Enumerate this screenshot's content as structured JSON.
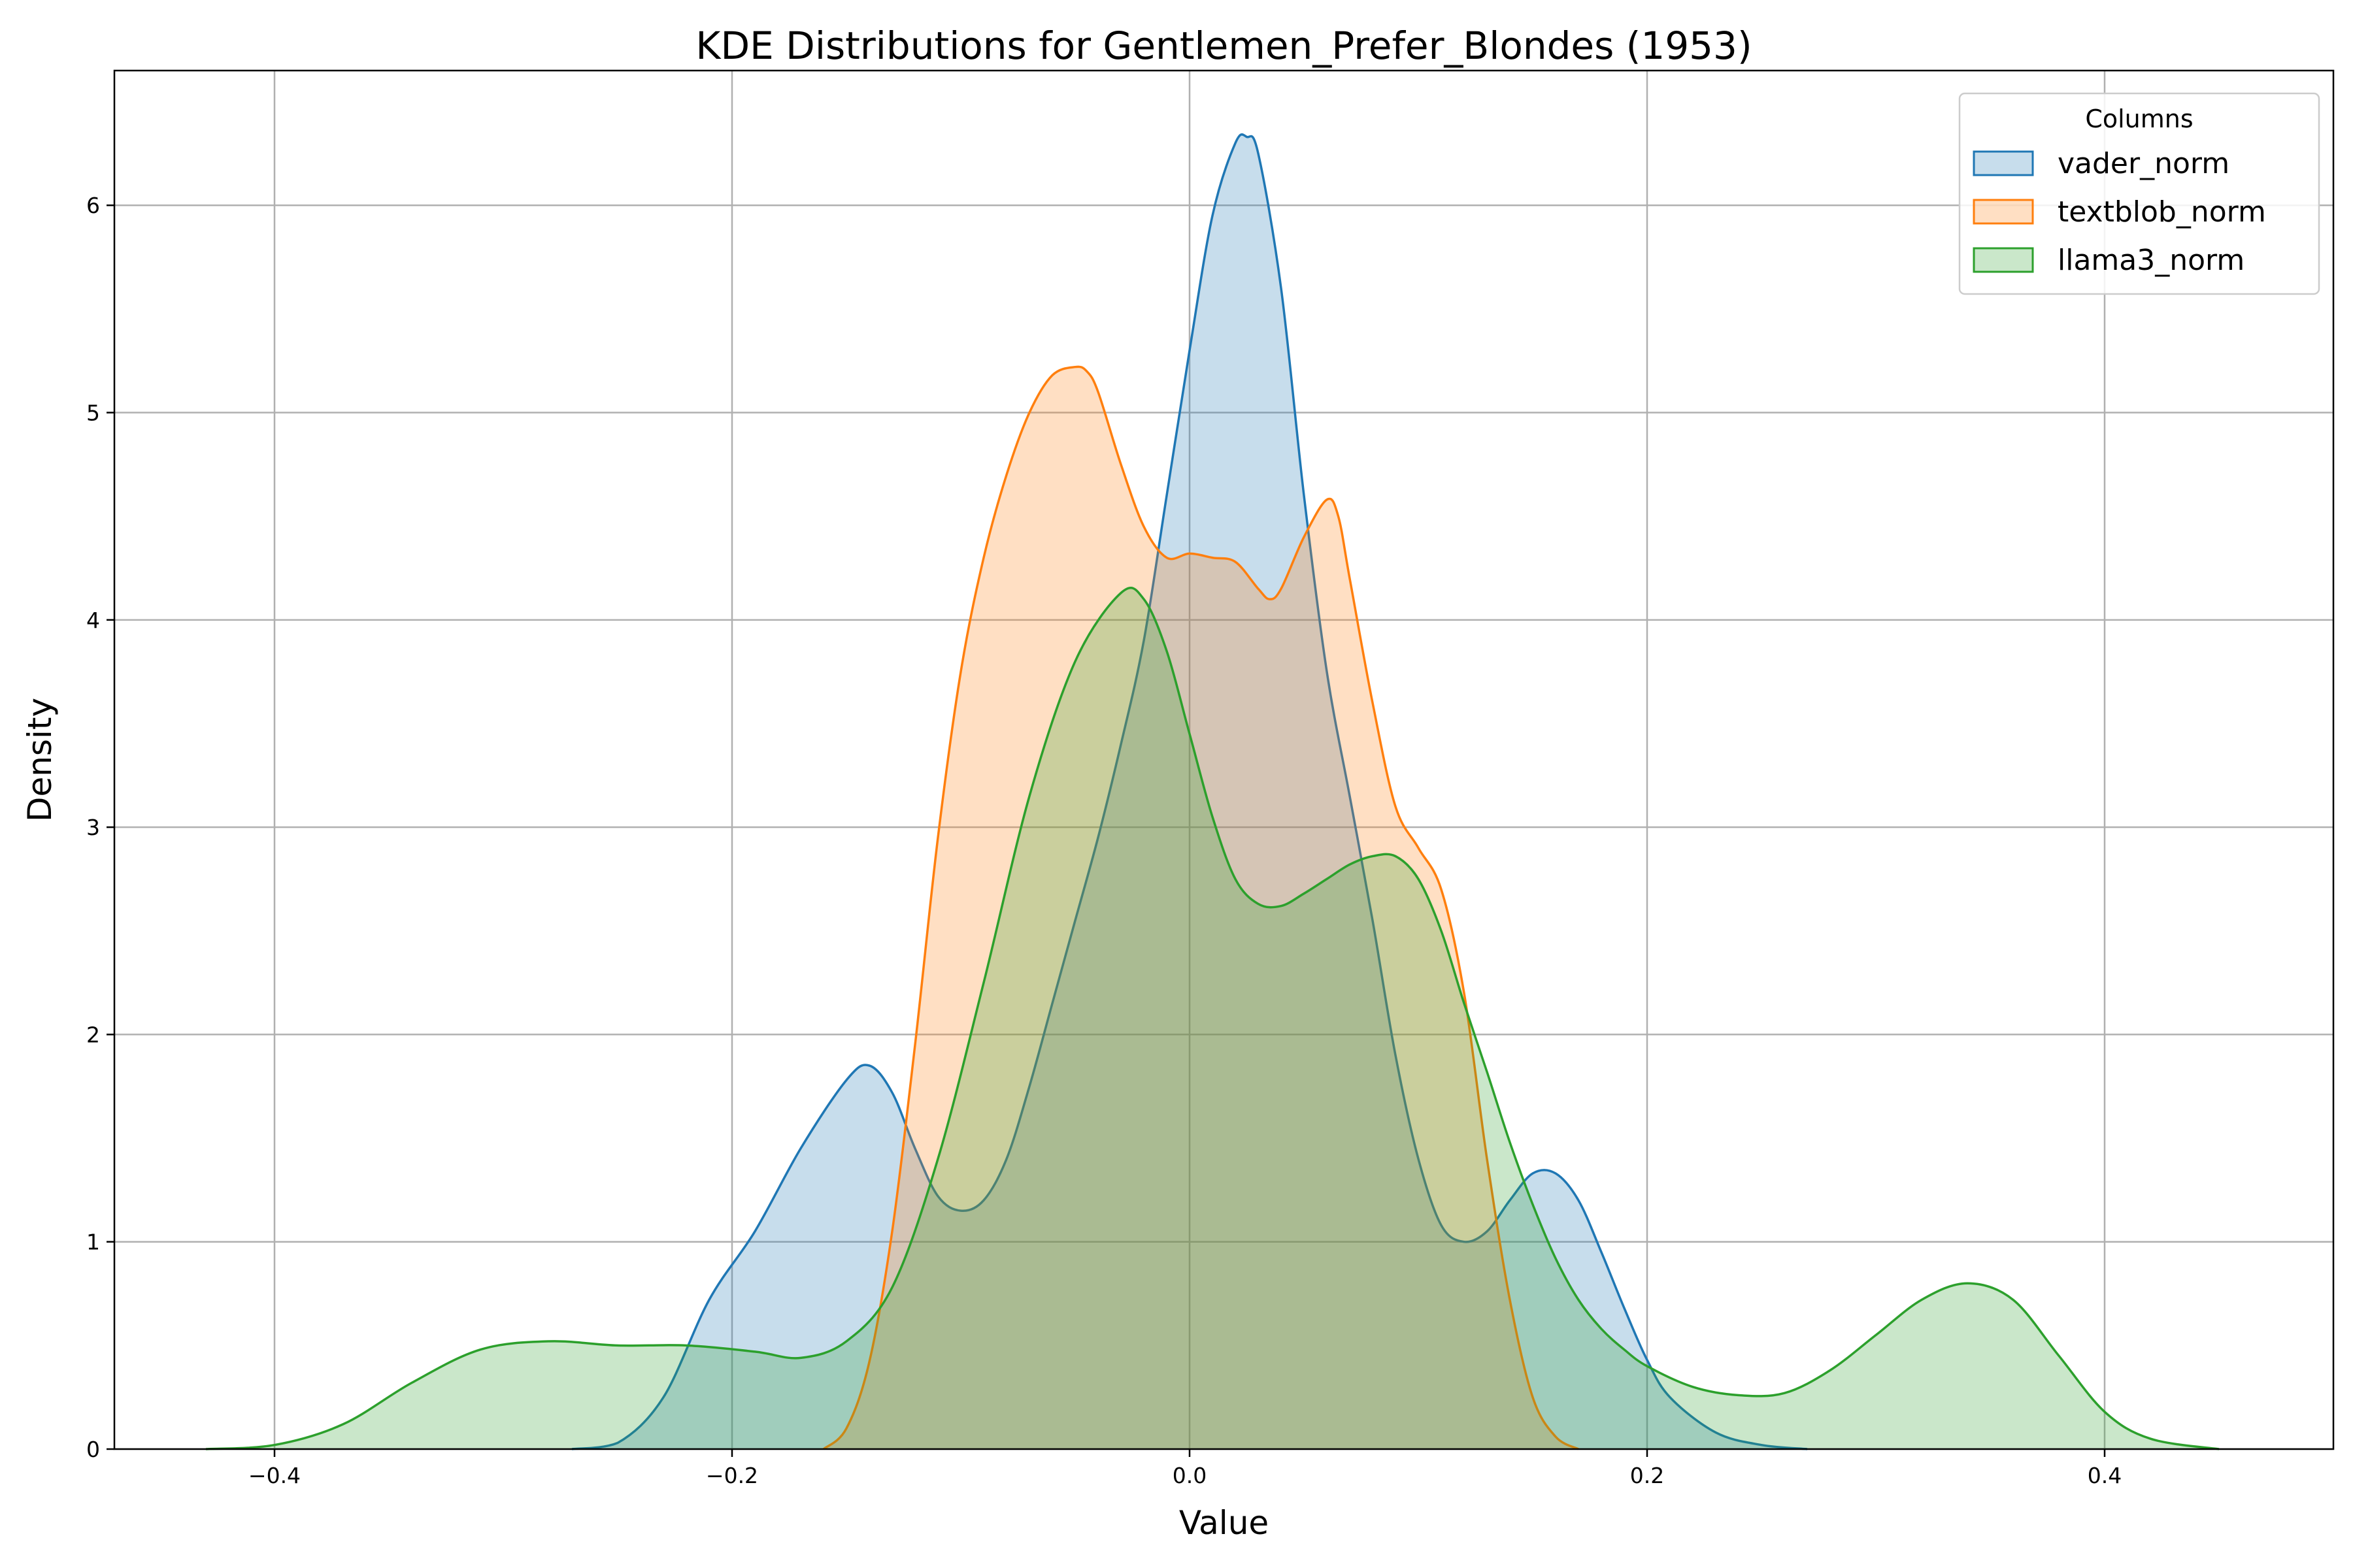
{
  "chart_data": {
    "type": "area",
    "title": "KDE Distributions for Gentlemen_Prefer_Blondes (1953)",
    "xlabel": "Value",
    "ylabel": "Density",
    "xlim": [
      -0.47,
      0.5
    ],
    "ylim": [
      0,
      6.65
    ],
    "xticks": [
      -0.4,
      -0.2,
      0.0,
      0.2,
      0.4
    ],
    "xtick_labels": [
      "−0.4",
      "−0.2",
      "0.0",
      "0.2",
      "0.4"
    ],
    "yticks": [
      0,
      1,
      2,
      3,
      4,
      5,
      6
    ],
    "ytick_labels": [
      "0",
      "1",
      "2",
      "3",
      "4",
      "5",
      "6"
    ],
    "grid": true,
    "legend": {
      "title": "Columns",
      "position": "top-right"
    },
    "series": [
      {
        "name": "vader_norm",
        "color": "#1f77b4",
        "x": [
          -0.27,
          -0.25,
          -0.23,
          -0.21,
          -0.19,
          -0.17,
          -0.15,
          -0.14,
          -0.13,
          -0.12,
          -0.11,
          -0.1,
          -0.09,
          -0.08,
          -0.07,
          -0.06,
          -0.05,
          -0.04,
          -0.03,
          -0.02,
          -0.01,
          0.0,
          0.01,
          0.02,
          0.025,
          0.03,
          0.04,
          0.05,
          0.06,
          0.07,
          0.08,
          0.09,
          0.1,
          0.11,
          0.12,
          0.13,
          0.14,
          0.15,
          0.16,
          0.17,
          0.18,
          0.19,
          0.2,
          0.21,
          0.23,
          0.25,
          0.27
        ],
        "y": [
          0.0,
          0.03,
          0.25,
          0.72,
          1.05,
          1.45,
          1.78,
          1.85,
          1.72,
          1.45,
          1.22,
          1.15,
          1.2,
          1.4,
          1.75,
          2.15,
          2.55,
          2.95,
          3.4,
          3.9,
          4.6,
          5.3,
          5.95,
          6.3,
          6.33,
          6.25,
          5.6,
          4.6,
          3.75,
          3.15,
          2.55,
          1.9,
          1.4,
          1.08,
          1.0,
          1.05,
          1.2,
          1.33,
          1.33,
          1.2,
          0.95,
          0.68,
          0.43,
          0.25,
          0.08,
          0.02,
          0.0
        ]
      },
      {
        "name": "textblob_norm",
        "color": "#ff7f0e",
        "x": [
          -0.16,
          -0.15,
          -0.14,
          -0.13,
          -0.12,
          -0.11,
          -0.1,
          -0.09,
          -0.08,
          -0.07,
          -0.06,
          -0.05,
          -0.045,
          -0.04,
          -0.03,
          -0.02,
          -0.01,
          0.0,
          0.01,
          0.02,
          0.03,
          0.035,
          0.04,
          0.05,
          0.06,
          0.065,
          0.07,
          0.08,
          0.09,
          0.1,
          0.11,
          0.12,
          0.13,
          0.14,
          0.15,
          0.16,
          0.17
        ],
        "y": [
          0.0,
          0.1,
          0.42,
          1.05,
          1.95,
          2.95,
          3.75,
          4.3,
          4.7,
          5.0,
          5.18,
          5.22,
          5.2,
          5.1,
          4.75,
          4.45,
          4.3,
          4.32,
          4.3,
          4.28,
          4.15,
          4.1,
          4.15,
          4.4,
          4.58,
          4.5,
          4.2,
          3.6,
          3.1,
          2.9,
          2.7,
          2.2,
          1.4,
          0.72,
          0.25,
          0.06,
          0.0
        ]
      },
      {
        "name": "llama3_norm",
        "color": "#2ca02c",
        "x": [
          -0.43,
          -0.4,
          -0.37,
          -0.34,
          -0.31,
          -0.28,
          -0.25,
          -0.22,
          -0.19,
          -0.17,
          -0.15,
          -0.13,
          -0.11,
          -0.09,
          -0.07,
          -0.05,
          -0.03,
          -0.02,
          -0.01,
          0.0,
          0.01,
          0.02,
          0.03,
          0.04,
          0.05,
          0.06,
          0.07,
          0.08,
          0.09,
          0.1,
          0.11,
          0.12,
          0.13,
          0.14,
          0.15,
          0.16,
          0.17,
          0.18,
          0.19,
          0.2,
          0.22,
          0.24,
          0.26,
          0.28,
          0.3,
          0.32,
          0.34,
          0.36,
          0.38,
          0.4,
          0.42,
          0.45
        ],
        "y": [
          0.0,
          0.02,
          0.12,
          0.32,
          0.48,
          0.52,
          0.5,
          0.5,
          0.47,
          0.44,
          0.52,
          0.78,
          1.4,
          2.25,
          3.15,
          3.8,
          4.13,
          4.1,
          3.85,
          3.45,
          3.05,
          2.75,
          2.63,
          2.62,
          2.68,
          2.75,
          2.82,
          2.86,
          2.86,
          2.75,
          2.5,
          2.15,
          1.82,
          1.48,
          1.18,
          0.92,
          0.72,
          0.58,
          0.48,
          0.4,
          0.3,
          0.26,
          0.27,
          0.38,
          0.55,
          0.72,
          0.8,
          0.72,
          0.45,
          0.18,
          0.05,
          0.0
        ]
      }
    ]
  }
}
